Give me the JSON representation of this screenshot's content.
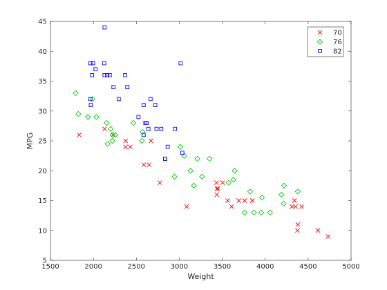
{
  "chart_data": {
    "type": "scatter",
    "title": "",
    "xlabel": "Weight",
    "ylabel": "MPG",
    "xlim": [
      1500,
      5000
    ],
    "ylim": [
      5,
      45
    ],
    "xticks": [
      1500,
      2000,
      2500,
      3000,
      3500,
      4000,
      4500,
      5000
    ],
    "yticks": [
      5,
      10,
      15,
      20,
      25,
      30,
      35,
      40,
      45
    ],
    "grid": false,
    "legend_position": "top-right",
    "series": [
      {
        "name": "70",
        "marker": "x",
        "color": "#ff0000",
        "points": [
          [
            1835,
            26
          ],
          [
            2130,
            27
          ],
          [
            2228,
            26
          ],
          [
            2375,
            25
          ],
          [
            2375,
            24
          ],
          [
            2430,
            24
          ],
          [
            2587,
            21
          ],
          [
            2648,
            21
          ],
          [
            2672,
            25
          ],
          [
            2774,
            18
          ],
          [
            3086,
            14
          ],
          [
            3433,
            18
          ],
          [
            3436,
            16
          ],
          [
            3439,
            17
          ],
          [
            3449,
            17
          ],
          [
            3504,
            18
          ],
          [
            3563,
            15
          ],
          [
            3609,
            14
          ],
          [
            3693,
            15
          ],
          [
            3761,
            15
          ],
          [
            3850,
            15
          ],
          [
            4312,
            14
          ],
          [
            4341,
            15
          ],
          [
            4354,
            14
          ],
          [
            4376,
            10
          ],
          [
            4382,
            11
          ],
          [
            4425,
            14
          ],
          [
            4615,
            10
          ],
          [
            4732,
            9
          ]
        ]
      },
      {
        "name": "76",
        "marker": "diamond",
        "color": "#00c800",
        "points": [
          [
            1795,
            33
          ],
          [
            1825,
            29.5
          ],
          [
            1937,
            29
          ],
          [
            1990,
            32
          ],
          [
            2035,
            29
          ],
          [
            2155,
            28
          ],
          [
            2164,
            24.5
          ],
          [
            2202,
            27
          ],
          [
            2220,
            25
          ],
          [
            2223,
            26
          ],
          [
            2255,
            26
          ],
          [
            2465,
            28
          ],
          [
            2565,
            25
          ],
          [
            2572,
            26.5
          ],
          [
            2945,
            19
          ],
          [
            3012,
            24
          ],
          [
            3057,
            22.5
          ],
          [
            3130,
            20
          ],
          [
            3170,
            17.5
          ],
          [
            3211,
            22
          ],
          [
            3265,
            19
          ],
          [
            3353,
            22
          ],
          [
            3575,
            18
          ],
          [
            3630,
            18.5
          ],
          [
            3645,
            20
          ],
          [
            3760,
            13
          ],
          [
            3825,
            16.5
          ],
          [
            3870,
            13
          ],
          [
            3955,
            13
          ],
          [
            3962,
            15.5
          ],
          [
            4057,
            13
          ],
          [
            4190,
            16
          ],
          [
            4215,
            14.5
          ],
          [
            4220,
            17.5
          ],
          [
            4380,
            16.5
          ]
        ]
      },
      {
        "name": "82",
        "marker": "square",
        "color": "#0000ff",
        "points": [
          [
            1965,
            32
          ],
          [
            1970,
            31
          ],
          [
            1965,
            38
          ],
          [
            1985,
            36
          ],
          [
            1995,
            38
          ],
          [
            2025,
            37
          ],
          [
            2125,
            38
          ],
          [
            2130,
            36
          ],
          [
            2130,
            44
          ],
          [
            2160,
            36
          ],
          [
            2190,
            36
          ],
          [
            2234,
            34
          ],
          [
            2295,
            32
          ],
          [
            2370,
            36
          ],
          [
            2395,
            34
          ],
          [
            2525,
            29
          ],
          [
            2585,
            26
          ],
          [
            2585,
            31
          ],
          [
            2605,
            28
          ],
          [
            2620,
            28
          ],
          [
            2640,
            27
          ],
          [
            2665,
            32
          ],
          [
            2720,
            31
          ],
          [
            2735,
            27
          ],
          [
            2790,
            27
          ],
          [
            2835,
            22
          ],
          [
            2835,
            22
          ],
          [
            2865,
            24
          ],
          [
            2950,
            27
          ],
          [
            3015,
            38
          ],
          [
            3035,
            23
          ]
        ]
      }
    ]
  }
}
